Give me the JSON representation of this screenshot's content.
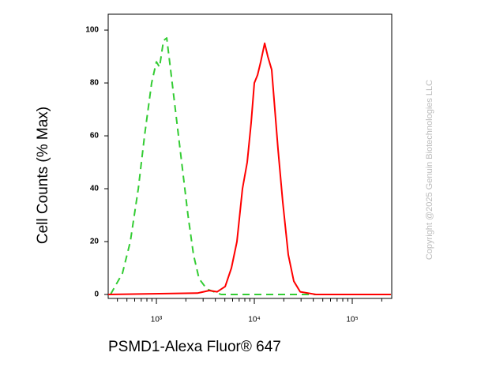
{
  "chart_data": {
    "type": "line",
    "x_label": "PSMD1-Alexa Fluor® 647",
    "y_label": "Cell Counts (% Max)",
    "watermark": "Copyright @2025 Genuin Biotechnologies LLC",
    "log_x": true,
    "xlim": [
      322,
      253000
    ],
    "ylim": [
      -1.5,
      106
    ],
    "xticks": [
      {
        "value": 1000,
        "label": "10³"
      },
      {
        "value": 10000,
        "label": "10⁴"
      },
      {
        "value": 100000,
        "label": "10⁵"
      }
    ],
    "xminorticks": [
      400,
      500,
      600,
      700,
      800,
      900,
      2000,
      3000,
      4000,
      5000,
      6000,
      7000,
      8000,
      9000,
      20000,
      30000,
      40000,
      50000,
      60000,
      70000,
      80000,
      90000,
      200000
    ],
    "yticks": [
      0,
      20,
      40,
      60,
      80,
      100
    ],
    "series": [
      {
        "color": "#33cc33",
        "dashed": true,
        "x": [
          340,
          450,
          542,
          653,
          757,
          895,
          1000,
          1077,
          1182,
          1274,
          1397,
          1561,
          1812,
          2102,
          2394,
          2725,
          3281,
          4582,
          9700,
          42560,
          248000
        ],
        "values": [
          0,
          8,
          20,
          40,
          60,
          80,
          88,
          86,
          96,
          97,
          85,
          70,
          50,
          30,
          15,
          6,
          2,
          0,
          0,
          0,
          0
        ]
      },
      {
        "color": "#ff0000",
        "dashed": false,
        "x": [
          322,
          2625,
          3467,
          4178,
          5035,
          5836,
          6650,
          7570,
          8460,
          9280,
          10000,
          10780,
          11610,
          12740,
          13720,
          15040,
          16200,
          17450,
          19500,
          22220,
          25300,
          29380,
          42560,
          248000
        ],
        "values": [
          0,
          0.5,
          1.5,
          1,
          3,
          10,
          20,
          40,
          50,
          65,
          80,
          83,
          88,
          95,
          90,
          85,
          70,
          55,
          35,
          15,
          5,
          1,
          0,
          0
        ]
      }
    ]
  }
}
